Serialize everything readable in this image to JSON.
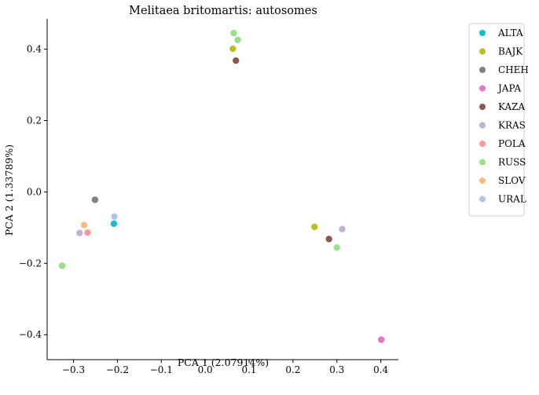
{
  "chart_data": {
    "type": "scatter",
    "title": "Melitaea britomartis: autosomes",
    "xlabel": "PCA 1 (2.07914%)",
    "ylabel": "PCA 2 (1.33789%)",
    "xlim": [
      -0.36,
      0.44
    ],
    "ylim": [
      -0.47,
      0.485
    ],
    "xticks": [
      -0.3,
      -0.2,
      -0.1,
      0.0,
      0.1,
      0.2,
      0.3,
      0.4
    ],
    "xtick_labels": [
      "−0.3",
      "−0.2",
      "−0.1",
      "0.0",
      "0.1",
      "0.2",
      "0.3",
      "0.4"
    ],
    "yticks": [
      -0.4,
      -0.2,
      0.0,
      0.2,
      0.4
    ],
    "ytick_labels": [
      "−0.4",
      "−0.2",
      "0.0",
      "0.2",
      "0.4"
    ],
    "grid": false,
    "legend_position": "outside-top-right",
    "series": [
      {
        "name": "ALTA",
        "color": "#17becf",
        "points": [
          [
            -0.208,
            -0.089
          ]
        ]
      },
      {
        "name": "BAJK",
        "color": "#bcbd22",
        "points": [
          [
            0.063,
            0.401
          ],
          [
            0.249,
            -0.098
          ]
        ]
      },
      {
        "name": "CHEH",
        "color": "#7f7f7f",
        "points": [
          [
            -0.251,
            -0.022
          ]
        ]
      },
      {
        "name": "JAPA",
        "color": "#e377c2",
        "points": [
          [
            0.401,
            -0.414
          ]
        ]
      },
      {
        "name": "KAZA",
        "color": "#8c564b",
        "points": [
          [
            0.07,
            0.368
          ],
          [
            0.282,
            -0.132
          ]
        ]
      },
      {
        "name": "KRAS",
        "color": "#c5b0d5",
        "points": [
          [
            -0.286,
            -0.115
          ],
          [
            0.312,
            -0.104
          ]
        ]
      },
      {
        "name": "POLA",
        "color": "#ff9896",
        "points": [
          [
            -0.268,
            -0.114
          ]
        ]
      },
      {
        "name": "RUSS",
        "color": "#98df8a",
        "points": [
          [
            0.065,
            0.445
          ],
          [
            0.074,
            0.426
          ],
          [
            -0.326,
            -0.207
          ],
          [
            0.3,
            -0.156
          ]
        ]
      },
      {
        "name": "SLOV",
        "color": "#ffbb78",
        "points": [
          [
            -0.276,
            -0.093
          ]
        ]
      },
      {
        "name": "URAL",
        "color": "#aec7e8",
        "points": [
          [
            -0.207,
            -0.069
          ]
        ]
      }
    ]
  }
}
